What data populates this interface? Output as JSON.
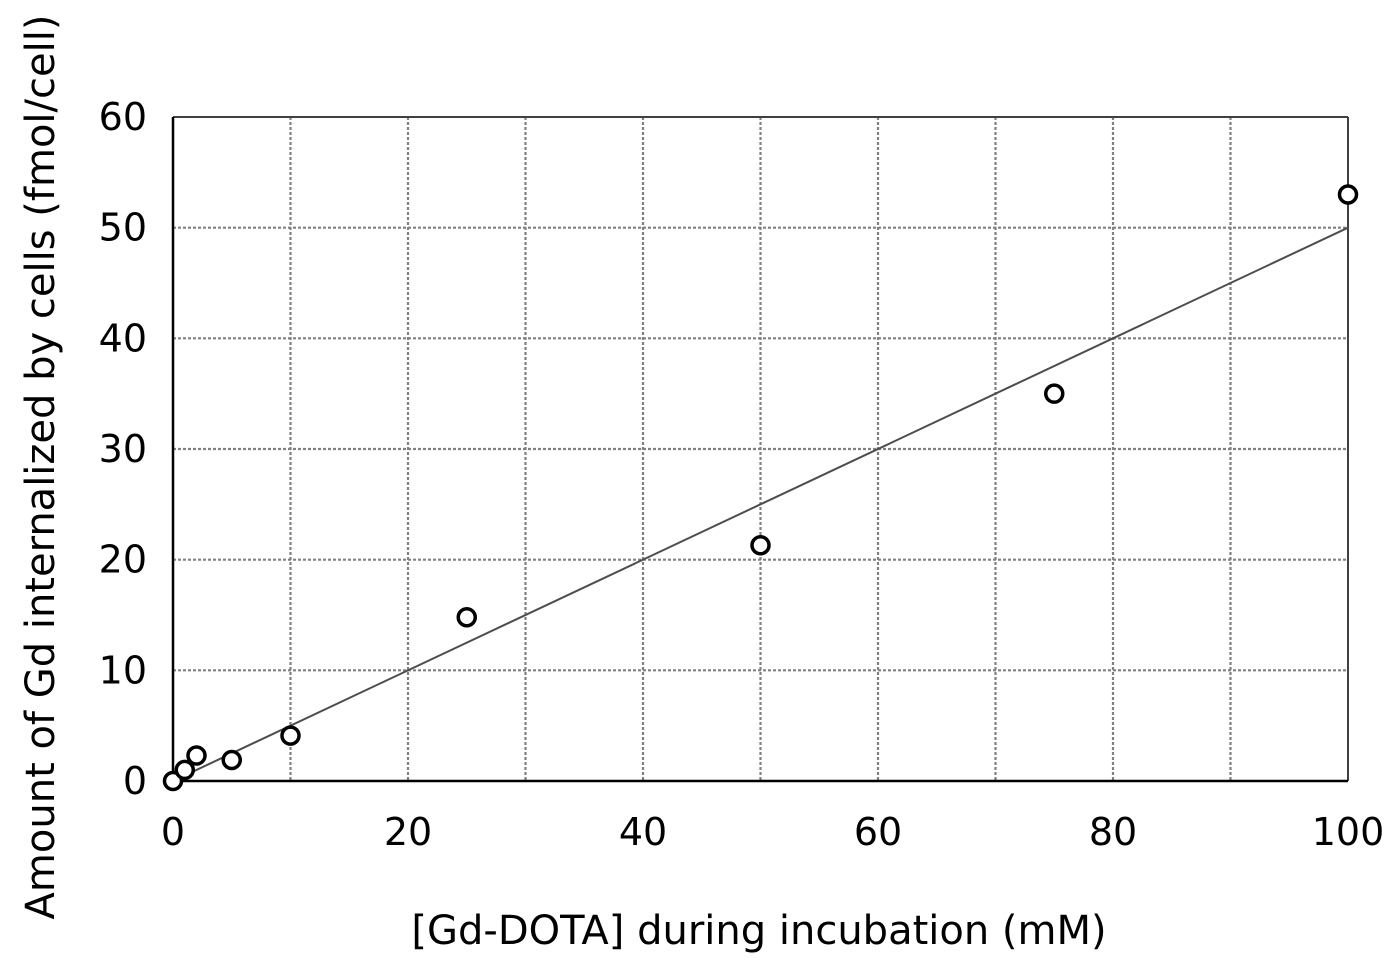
{
  "chart_data": {
    "type": "scatter",
    "title": "",
    "xlabel": "[Gd-DOTA] during incubation (mM)",
    "ylabel": "Amount of Gd internalized by cells (fmol/cell)",
    "xlim": [
      0,
      100
    ],
    "ylim": [
      0,
      60
    ],
    "xticks": [
      0,
      20,
      40,
      60,
      80,
      100
    ],
    "xtick_labels": [
      "0",
      "20",
      "40",
      "60",
      "80",
      "100"
    ],
    "yticks": [
      0,
      10,
      20,
      30,
      40,
      50,
      60
    ],
    "ytick_labels": [
      "0",
      "10",
      "20",
      "30",
      "40",
      "50",
      "60"
    ],
    "grid": true,
    "grid_x_step": 10,
    "grid_y_step": 10,
    "legend": "none",
    "series": [
      {
        "marker": "open-circle",
        "x": [
          0,
          1,
          2,
          5,
          10,
          25,
          50,
          75,
          100
        ],
        "y": [
          0,
          1,
          2.3,
          1.9,
          4.1,
          14.8,
          21.3,
          35,
          53
        ]
      }
    ],
    "trendline": {
      "type": "linear",
      "x": [
        0,
        100
      ],
      "y": [
        0,
        50
      ]
    },
    "colors": {
      "axis": "#000000",
      "grid": "#808080",
      "marker_edge": "#000000",
      "marker_fill": "#ffffff",
      "trendline": "#4d4d4d"
    }
  }
}
